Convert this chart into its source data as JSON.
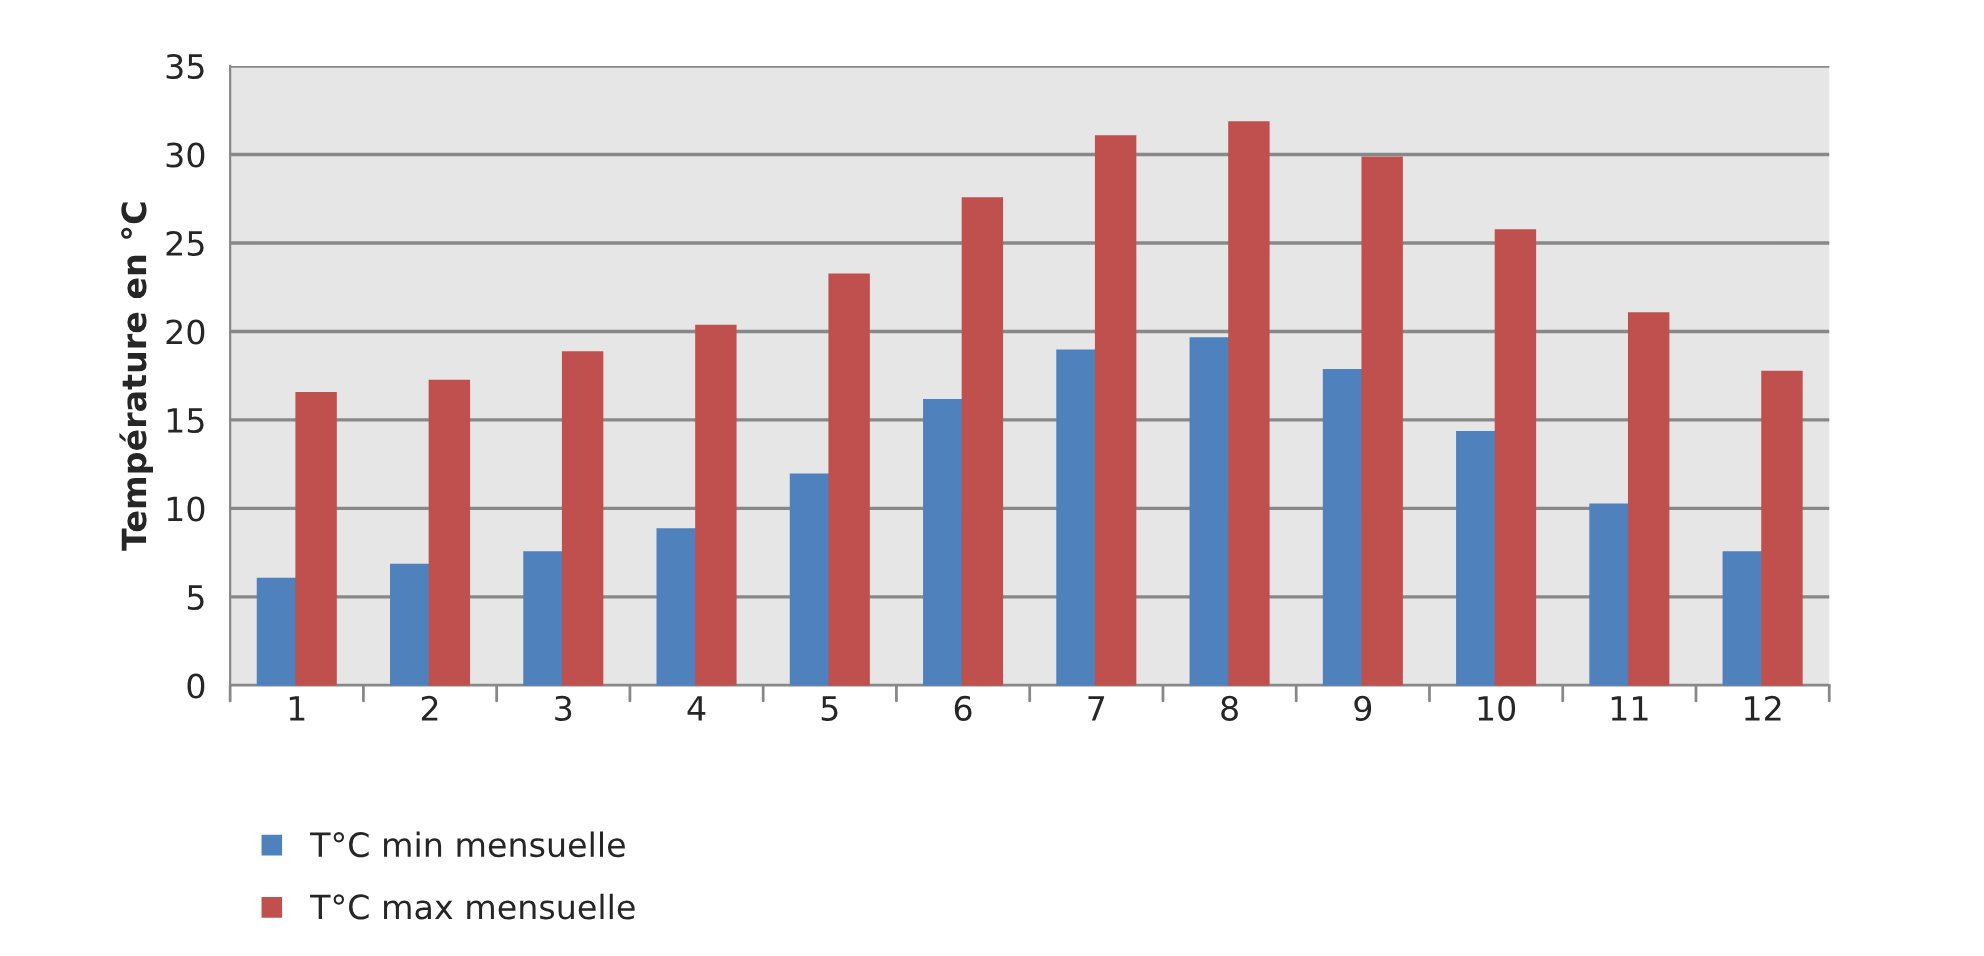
{
  "chart_data": {
    "type": "bar",
    "ylabel": "Température en °C",
    "categories": [
      "1",
      "2",
      "3",
      "4",
      "5",
      "6",
      "7",
      "8",
      "9",
      "10",
      "11",
      "12"
    ],
    "series": [
      {
        "name": "T°C min mensuelle",
        "color": "#4f81bd",
        "values": [
          6.0,
          6.8,
          7.5,
          8.8,
          11.9,
          16.1,
          18.9,
          19.6,
          17.8,
          14.3,
          10.2,
          7.5
        ]
      },
      {
        "name": "T°C max mensuelle",
        "color": "#c0504d",
        "values": [
          16.5,
          17.2,
          18.8,
          20.3,
          23.2,
          27.5,
          31.0,
          31.8,
          29.8,
          25.7,
          21.0,
          17.7
        ]
      }
    ],
    "ylim": [
      0,
      35
    ],
    "yticks": [
      0,
      5,
      10,
      15,
      20,
      25,
      30,
      35
    ],
    "grid": "y",
    "legend": "bottom"
  }
}
